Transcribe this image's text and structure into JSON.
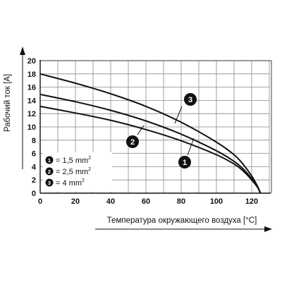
{
  "chart_data": {
    "type": "line",
    "xlabel": "Температура окружающего воздуха [°C]",
    "ylabel": "Рабочий ток [A]",
    "xlim": [
      0,
      130
    ],
    "ylim": [
      0,
      20
    ],
    "x_ticks": [
      "0",
      "20",
      "40",
      "60",
      "80",
      "100",
      "120"
    ],
    "y_ticks": [
      "0",
      "2",
      "4",
      "6",
      "8",
      "10",
      "12",
      "14",
      "16",
      "18",
      "20"
    ],
    "grid": true,
    "series": [
      {
        "id": "1",
        "legend": "= 1,5 mm",
        "unit_power": "2",
        "points": [
          [
            0,
            13.1
          ],
          [
            20,
            12.1
          ],
          [
            40,
            11.0
          ],
          [
            60,
            9.6
          ],
          [
            80,
            7.9
          ],
          [
            100,
            5.8
          ],
          [
            110,
            4.4
          ],
          [
            115,
            3.4
          ],
          [
            120,
            2.0
          ],
          [
            123,
            1.0
          ],
          [
            125,
            0
          ]
        ]
      },
      {
        "id": "2",
        "legend": "= 2,5 mm",
        "unit_power": "2",
        "points": [
          [
            0,
            14.9
          ],
          [
            20,
            13.8
          ],
          [
            40,
            12.5
          ],
          [
            60,
            10.9
          ],
          [
            80,
            8.9
          ],
          [
            100,
            6.4
          ],
          [
            110,
            4.8
          ],
          [
            115,
            3.7
          ],
          [
            120,
            2.2
          ],
          [
            123,
            1.1
          ],
          [
            125,
            0
          ]
        ]
      },
      {
        "id": "3",
        "legend": "= 4 mm",
        "unit_power": "2",
        "points": [
          [
            0,
            18.0
          ],
          [
            20,
            16.6
          ],
          [
            40,
            15.0
          ],
          [
            60,
            13.1
          ],
          [
            80,
            10.7
          ],
          [
            100,
            7.7
          ],
          [
            110,
            5.8
          ],
          [
            115,
            4.4
          ],
          [
            120,
            2.6
          ],
          [
            123,
            1.2
          ],
          [
            125,
            0
          ]
        ]
      }
    ]
  }
}
